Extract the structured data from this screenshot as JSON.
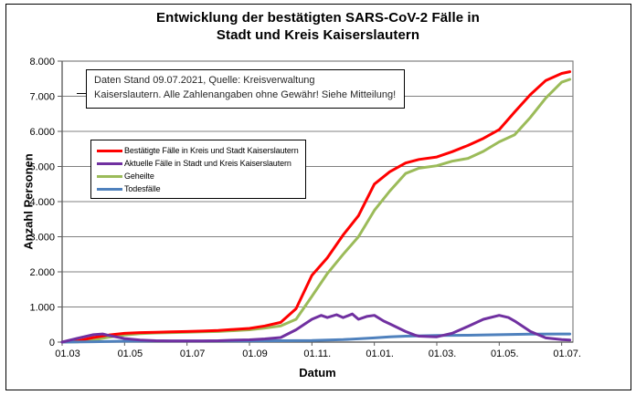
{
  "title": {
    "line1": "Entwicklung der bestätigten SARS-CoV-2 Fälle in",
    "line2": "Stadt und Kreis Kaiserslautern"
  },
  "annotation": {
    "line1": "Daten Stand 09.07.2021, Quelle: Kreisverwaltung",
    "line2": "Kaiserslautern. Alle Zahlenangaben ohne Gewähr! Siehe Mitteilung!"
  },
  "chart_data": {
    "type": "line",
    "title": "Entwicklung der bestätigten SARS-CoV-2 Fälle in Stadt und Kreis Kaiserslautern",
    "xlabel": "Datum",
    "ylabel": "Anzahl Personen",
    "ylim": [
      0,
      8000
    ],
    "grid": "horizontal, every 1000",
    "legend_position": "inside upper-left",
    "x_axis_end_date": "2021-07-12",
    "colors": {
      "grid": "#808080",
      "axis": "#595959",
      "plot_border": "#808080",
      "frame": "#000000"
    },
    "y_ticks": [
      {
        "value": 0,
        "label": "0"
      },
      {
        "value": 1000,
        "label": "1.000"
      },
      {
        "value": 2000,
        "label": "2.000"
      },
      {
        "value": 3000,
        "label": "3.000"
      },
      {
        "value": 4000,
        "label": "4.000"
      },
      {
        "value": 5000,
        "label": "5.000"
      },
      {
        "value": 6000,
        "label": "6.000"
      },
      {
        "value": 7000,
        "label": "7.000"
      },
      {
        "value": 8000,
        "label": "8.000"
      }
    ],
    "x_ticks": [
      {
        "date": "2020-03-01",
        "label": "01.03"
      },
      {
        "date": "2020-05-01",
        "label": "01.05"
      },
      {
        "date": "2020-07-01",
        "label": "01.07"
      },
      {
        "date": "2020-09-01",
        "label": "01.09"
      },
      {
        "date": "2020-11-01",
        "label": "01.11."
      },
      {
        "date": "2021-01-01",
        "label": "01.01."
      },
      {
        "date": "2021-03-01",
        "label": "01.03."
      },
      {
        "date": "2021-05-01",
        "label": "01.05."
      },
      {
        "date": "2021-07-01",
        "label": "01.07."
      }
    ],
    "series": [
      {
        "name": "Bestätigte Fälle in Kreis und Stadt Kaiserslautern",
        "color": "#FF0000",
        "points": [
          [
            "2020-03-01",
            0
          ],
          [
            "2020-03-16",
            30
          ],
          [
            "2020-04-01",
            130
          ],
          [
            "2020-04-16",
            200
          ],
          [
            "2020-05-01",
            250
          ],
          [
            "2020-05-16",
            270
          ],
          [
            "2020-06-01",
            280
          ],
          [
            "2020-06-16",
            290
          ],
          [
            "2020-07-01",
            300
          ],
          [
            "2020-07-16",
            315
          ],
          [
            "2020-08-01",
            330
          ],
          [
            "2020-08-16",
            360
          ],
          [
            "2020-09-01",
            390
          ],
          [
            "2020-09-16",
            460
          ],
          [
            "2020-10-01",
            560
          ],
          [
            "2020-10-16",
            950
          ],
          [
            "2020-11-01",
            1900
          ],
          [
            "2020-11-16",
            2400
          ],
          [
            "2020-12-01",
            3050
          ],
          [
            "2020-12-16",
            3600
          ],
          [
            "2021-01-01",
            4500
          ],
          [
            "2021-01-16",
            4850
          ],
          [
            "2021-02-01",
            5100
          ],
          [
            "2021-02-14",
            5200
          ],
          [
            "2021-03-01",
            5270
          ],
          [
            "2021-03-16",
            5420
          ],
          [
            "2021-04-01",
            5600
          ],
          [
            "2021-04-16",
            5800
          ],
          [
            "2021-05-01",
            6050
          ],
          [
            "2021-05-16",
            6550
          ],
          [
            "2021-06-01",
            7050
          ],
          [
            "2021-06-16",
            7450
          ],
          [
            "2021-07-01",
            7650
          ],
          [
            "2021-07-09",
            7700
          ]
        ]
      },
      {
        "name": "Aktuelle Fälle in Stadt und Kreis Kaiserslautern",
        "color": "#7030A0",
        "points": [
          [
            "2020-03-01",
            0
          ],
          [
            "2020-03-16",
            110
          ],
          [
            "2020-04-01",
            210
          ],
          [
            "2020-04-10",
            230
          ],
          [
            "2020-04-16",
            190
          ],
          [
            "2020-05-01",
            100
          ],
          [
            "2020-05-16",
            60
          ],
          [
            "2020-06-01",
            40
          ],
          [
            "2020-06-16",
            30
          ],
          [
            "2020-07-01",
            30
          ],
          [
            "2020-07-16",
            35
          ],
          [
            "2020-08-01",
            40
          ],
          [
            "2020-08-16",
            55
          ],
          [
            "2020-09-01",
            65
          ],
          [
            "2020-09-16",
            90
          ],
          [
            "2020-10-01",
            130
          ],
          [
            "2020-10-16",
            350
          ],
          [
            "2020-11-01",
            650
          ],
          [
            "2020-11-10",
            760
          ],
          [
            "2020-11-16",
            700
          ],
          [
            "2020-11-25",
            780
          ],
          [
            "2020-12-01",
            700
          ],
          [
            "2020-12-10",
            800
          ],
          [
            "2020-12-16",
            650
          ],
          [
            "2020-12-24",
            730
          ],
          [
            "2021-01-01",
            760
          ],
          [
            "2021-01-10",
            600
          ],
          [
            "2021-01-16",
            520
          ],
          [
            "2021-02-01",
            300
          ],
          [
            "2021-02-10",
            200
          ],
          [
            "2021-02-14",
            170
          ],
          [
            "2021-03-01",
            150
          ],
          [
            "2021-03-16",
            250
          ],
          [
            "2021-04-01",
            450
          ],
          [
            "2021-04-16",
            650
          ],
          [
            "2021-05-01",
            760
          ],
          [
            "2021-05-10",
            700
          ],
          [
            "2021-05-16",
            600
          ],
          [
            "2021-06-01",
            300
          ],
          [
            "2021-06-16",
            120
          ],
          [
            "2021-07-01",
            70
          ],
          [
            "2021-07-09",
            60
          ]
        ]
      },
      {
        "name": "Geheilte",
        "color": "#9BBB59",
        "points": [
          [
            "2020-03-01",
            0
          ],
          [
            "2020-03-16",
            5
          ],
          [
            "2020-04-01",
            60
          ],
          [
            "2020-04-16",
            140
          ],
          [
            "2020-05-01",
            200
          ],
          [
            "2020-05-16",
            240
          ],
          [
            "2020-06-01",
            260
          ],
          [
            "2020-06-16",
            270
          ],
          [
            "2020-07-01",
            280
          ],
          [
            "2020-07-16",
            290
          ],
          [
            "2020-08-01",
            300
          ],
          [
            "2020-08-16",
            325
          ],
          [
            "2020-09-01",
            350
          ],
          [
            "2020-09-16",
            400
          ],
          [
            "2020-10-01",
            460
          ],
          [
            "2020-10-16",
            650
          ],
          [
            "2020-11-01",
            1300
          ],
          [
            "2020-11-16",
            1950
          ],
          [
            "2020-12-01",
            2500
          ],
          [
            "2020-12-16",
            3000
          ],
          [
            "2021-01-01",
            3750
          ],
          [
            "2021-01-16",
            4300
          ],
          [
            "2021-02-01",
            4800
          ],
          [
            "2021-02-14",
            4950
          ],
          [
            "2021-03-01",
            5020
          ],
          [
            "2021-03-16",
            5150
          ],
          [
            "2021-04-01",
            5230
          ],
          [
            "2021-04-16",
            5430
          ],
          [
            "2021-05-01",
            5700
          ],
          [
            "2021-05-16",
            5900
          ],
          [
            "2021-06-01",
            6400
          ],
          [
            "2021-06-16",
            6950
          ],
          [
            "2021-07-01",
            7400
          ],
          [
            "2021-07-09",
            7480
          ]
        ]
      },
      {
        "name": "Todesfälle",
        "color": "#4F81BD",
        "points": [
          [
            "2020-03-01",
            0
          ],
          [
            "2020-04-01",
            10
          ],
          [
            "2020-05-01",
            25
          ],
          [
            "2020-06-01",
            30
          ],
          [
            "2020-07-01",
            30
          ],
          [
            "2020-08-01",
            32
          ],
          [
            "2020-09-01",
            35
          ],
          [
            "2020-10-01",
            40
          ],
          [
            "2020-11-01",
            45
          ],
          [
            "2020-12-01",
            70
          ],
          [
            "2021-01-01",
            120
          ],
          [
            "2021-01-16",
            150
          ],
          [
            "2021-02-01",
            170
          ],
          [
            "2021-03-01",
            190
          ],
          [
            "2021-04-01",
            195
          ],
          [
            "2021-05-01",
            210
          ],
          [
            "2021-06-01",
            225
          ],
          [
            "2021-07-01",
            230
          ],
          [
            "2021-07-09",
            230
          ]
        ]
      }
    ]
  }
}
